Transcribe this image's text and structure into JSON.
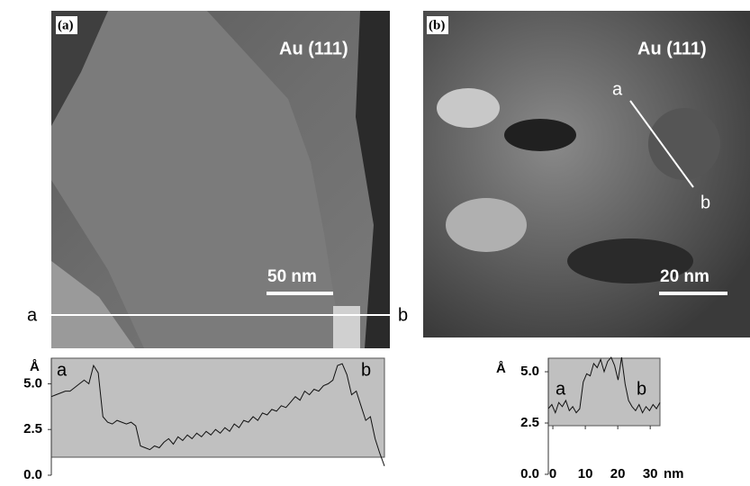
{
  "panels": [
    {
      "label": "(a)",
      "material": "Au (111)",
      "scale_bar": "50 nm",
      "line_start": "a",
      "line_end": "b",
      "profile": {
        "y_unit": "Å",
        "start": "a",
        "end": "b",
        "ylim": [
          0,
          6.4
        ],
        "yticks": [
          {
            "value": 0,
            "label": "0.0"
          },
          {
            "value": 2.5,
            "label": "2.5"
          },
          {
            "value": 5,
            "label": "5.0"
          }
        ],
        "values": [
          4.3,
          4.4,
          4.5,
          4.6,
          4.6,
          4.8,
          5.0,
          5.2,
          5.0,
          6.0,
          5.6,
          3.2,
          2.9,
          2.8,
          3.0,
          2.9,
          2.8,
          2.9,
          2.7,
          1.6,
          1.5,
          1.4,
          1.6,
          1.5,
          1.8,
          2.0,
          1.7,
          2.1,
          1.9,
          2.2,
          2.0,
          2.3,
          2.1,
          2.4,
          2.2,
          2.5,
          2.3,
          2.6,
          2.4,
          2.8,
          2.6,
          3.0,
          2.9,
          3.2,
          3.0,
          3.4,
          3.3,
          3.6,
          3.5,
          3.8,
          3.7,
          4.0,
          4.3,
          4.1,
          4.6,
          4.4,
          4.7,
          4.6,
          4.9,
          5.0,
          5.2,
          6.0,
          6.1,
          5.5,
          4.4,
          4.6,
          3.8,
          3.0,
          3.2,
          2.0,
          1.2,
          0.5
        ]
      }
    },
    {
      "label": "(b)",
      "material": "Au (111)",
      "scale_bar": "20 nm",
      "line_start": "a",
      "line_end": "b",
      "profile": {
        "y_unit": "Å",
        "x_unit": "nm",
        "start": "a",
        "end": "b",
        "ylim": [
          0,
          5.66
        ],
        "xlim": [
          -1.4,
          33
        ],
        "yticks": [
          {
            "value": 0,
            "label": "0.0"
          },
          {
            "value": 2.5,
            "label": "2.5"
          },
          {
            "value": 5,
            "label": "5.0"
          }
        ],
        "xticks": [
          0,
          10,
          20,
          30
        ],
        "values": [
          3.2,
          3.4,
          3.0,
          3.5,
          3.3,
          3.6,
          3.1,
          3.3,
          3.0,
          3.2,
          4.5,
          4.9,
          4.8,
          5.4,
          5.2,
          5.6,
          5.0,
          5.5,
          5.7,
          5.3,
          4.6,
          5.7,
          4.4,
          3.6,
          3.3,
          3.1,
          3.4,
          3.0,
          3.3,
          3.1,
          3.4,
          3.2,
          3.5
        ]
      }
    }
  ]
}
